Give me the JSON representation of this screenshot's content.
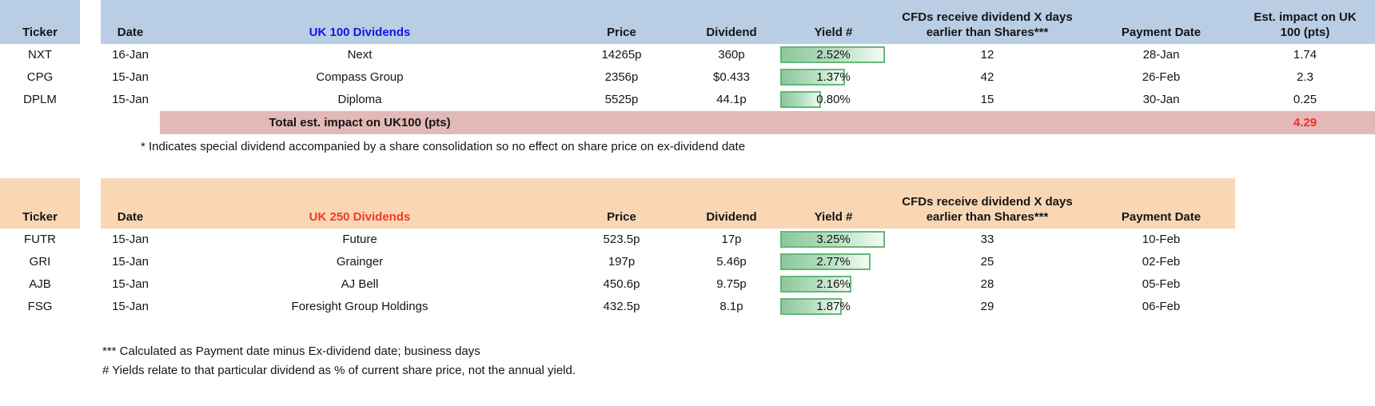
{
  "colors": {
    "uk100_header_bg": "#b9cde4",
    "uk250_header_bg": "#f9d7b5",
    "total_row_bg": "#e2b9b7",
    "uk100_title_text": "#1515e8",
    "uk250_title_text": "#f23a28",
    "total_value_text": "#ee3124",
    "yield_databar_green": "#63b778"
  },
  "uk100": {
    "title": "UK 100 Dividends",
    "columns": {
      "ticker": "Ticker",
      "date": "Date",
      "price": "Price",
      "dividend": "Dividend",
      "yield": "Yield #",
      "cfds_line1": "CFDs receive dividend X days",
      "cfds_line2": "earlier than Shares***",
      "payment": "Payment Date",
      "impact_line1": "Est. impact on UK",
      "impact_line2": "100 (pts)"
    },
    "rows": [
      {
        "ticker": "NXT",
        "date": "16-Jan",
        "name": "Next",
        "price": "14265p",
        "dividend": "360p",
        "yield": "2.52%",
        "bar_pct": 97,
        "cfds": "12",
        "payment": "28-Jan",
        "impact": "1.74"
      },
      {
        "ticker": "CPG",
        "date": "15-Jan",
        "name": "Compass Group",
        "price": "2356p",
        "dividend": "$0.433",
        "yield": "1.37%",
        "bar_pct": 60,
        "cfds": "42",
        "payment": "26-Feb",
        "impact": "2.3"
      },
      {
        "ticker": "DPLM",
        "date": "15-Jan",
        "name": "Diploma",
        "price": "5525p",
        "dividend": "44.1p",
        "yield": "0.80%",
        "bar_pct": 38,
        "cfds": "15",
        "payment": "30-Jan",
        "impact": "0.25"
      }
    ],
    "total_label": "Total est. impact on UK100 (pts)",
    "total_value": "4.29",
    "footnote": "* Indicates special dividend accompanied by a share consolidation so no effect on share price on ex-dividend date"
  },
  "uk250": {
    "title": "UK 250 Dividends",
    "columns": {
      "ticker": "Ticker",
      "date": "Date",
      "price": "Price",
      "dividend": "Dividend",
      "yield": "Yield #",
      "cfds_line1": "CFDs receive dividend X days",
      "cfds_line2": "earlier than Shares***",
      "payment": "Payment Date"
    },
    "rows": [
      {
        "ticker": "FUTR",
        "date": "15-Jan",
        "name": "Future",
        "price": "523.5p",
        "dividend": "17p",
        "yield": "3.25%",
        "bar_pct": 97,
        "cfds": "33",
        "payment": "10-Feb"
      },
      {
        "ticker": "GRI",
        "date": "15-Jan",
        "name": "Grainger",
        "price": "197p",
        "dividend": "5.46p",
        "yield": "2.77%",
        "bar_pct": 84,
        "cfds": "25",
        "payment": "02-Feb"
      },
      {
        "ticker": "AJB",
        "date": "15-Jan",
        "name": "AJ Bell",
        "price": "450.6p",
        "dividend": "9.75p",
        "yield": "2.16%",
        "bar_pct": 66,
        "cfds": "28",
        "payment": "05-Feb"
      },
      {
        "ticker": "FSG",
        "date": "15-Jan",
        "name": "Foresight Group Holdings",
        "price": "432.5p",
        "dividend": "8.1p",
        "yield": "1.87%",
        "bar_pct": 57,
        "cfds": "29",
        "payment": "06-Feb"
      }
    ],
    "footnote1": "*** Calculated as Payment date minus Ex-dividend date; business days",
    "footnote2": "# Yields relate to that particular dividend as % of current share price, not the annual yield."
  }
}
